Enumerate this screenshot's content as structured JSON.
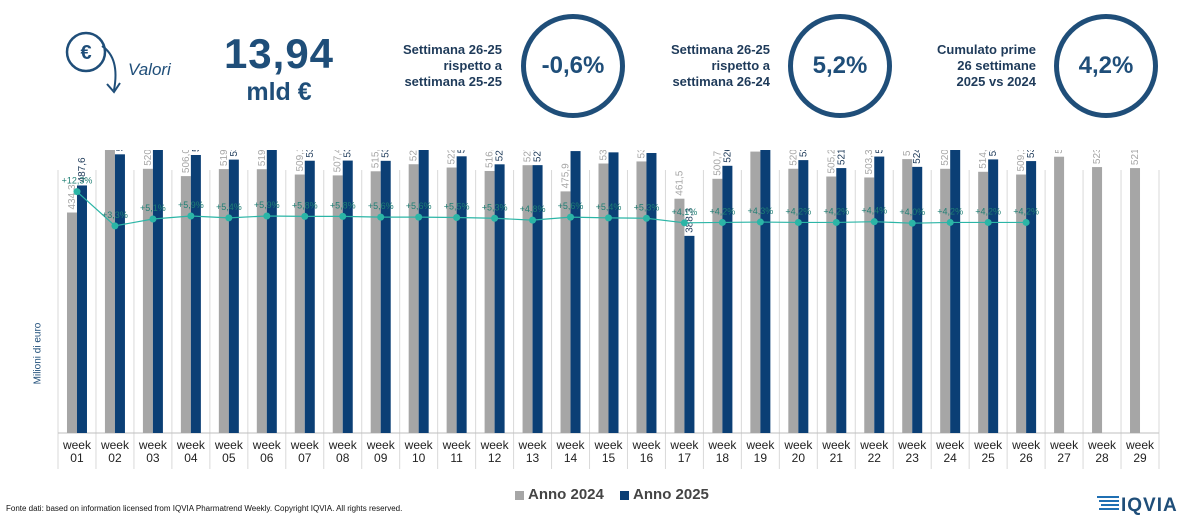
{
  "header": {
    "valori_label": "Valori",
    "kpi_value": "13,94",
    "kpi_unit": "mld €",
    "kpi1": {
      "line1": "Settimana 26-25",
      "line2": "rispetto a",
      "line3": "settimana 25-25",
      "value": "-0,6%"
    },
    "kpi2": {
      "line1": "Settimana 26-25",
      "line2": "rispetto a",
      "line3": "settimana 26-24",
      "value": "5,2%"
    },
    "kpi3": {
      "line1": "Cumulato prime",
      "line2": "26 settimane",
      "line3": "2025 vs 2024",
      "value": "4,2%"
    }
  },
  "source": "Fonte dati: based on information licensed from IQVIA Pharmatrend Weekly. Copyright IQVIA. All rights reserved.",
  "logo_text": "IQVIA",
  "chart_data": {
    "type": "bar",
    "ylabel": "Milioni di euro",
    "categories": [
      "week\n01",
      "week\n02",
      "week\n03",
      "week\n04",
      "week\n05",
      "week\n06",
      "week\n07",
      "week\n08",
      "week\n09",
      "week\n10",
      "week\n11",
      "week\n12",
      "week\n13",
      "week\n14",
      "week\n15",
      "week\n16",
      "week\n17",
      "week\n18",
      "week\n19",
      "week\n20",
      "week\n21",
      "week\n22",
      "week\n23",
      "week\n24",
      "week\n25",
      "week\n26",
      "week\n27",
      "week\n28",
      "week\n29"
    ],
    "series": [
      {
        "name": "Anno 2024",
        "color": "#a6a6a6",
        "values": [
          434.3,
          568.8,
          520.4,
          506.0,
          519.8,
          519.6,
          509.1,
          507.4,
          515.5,
          529.4,
          522.9,
          516.1,
          527.5,
          475.9,
          530.8,
          534.9,
          461.5,
          500.7,
          554.3,
          520.5,
          505.2,
          503.3,
          539.5,
          520.4,
          514.5,
          509.1,
          544.2,
          523.8,
          521.8
        ],
        "labels": [
          "434,3",
          "568,8",
          "520,4",
          "506,0",
          "519,8",
          "519,6",
          "509,1",
          "507,4",
          "515,5",
          "529,4",
          "522,9",
          "516,1",
          "527,5",
          "475,9",
          "530,8",
          "534,9",
          "461,5",
          "500,7",
          "554,3",
          "520,5",
          "505,2",
          "503,3",
          "539,5",
          "520,4",
          "514,5",
          "509,1",
          "544,2",
          "523,8",
          "521,8"
        ]
      },
      {
        "name": "Anno 2025",
        "color": "#0b3f75",
        "values": [
          487.6,
          548.9,
          564.4,
          547.6,
          538.5,
          562.1,
          536.3,
          536.6,
          536.1,
          560.3,
          545.0,
          529.2,
          527.6,
          555.3,
          552.8,
          551.5,
          388.3,
          526.3,
          587.5,
          537.5,
          521.8,
          544.5,
          524.2,
          558.0,
          538.9,
          535.6,
          null,
          null,
          null
        ],
        "labels": [
          "487,6",
          "548,9",
          "564,4",
          "547,6",
          "538,5",
          "562,1",
          "536,3",
          "536,6",
          "536,1",
          "560,3",
          "545,0",
          "529,2",
          "527,6",
          "555,3",
          "552,8",
          "551,5",
          "388,3",
          "526,3",
          "587,5",
          "537,5",
          "521,8",
          "544,5",
          "524,2",
          "558,0",
          "538,9",
          "535,6",
          null,
          null,
          null
        ]
      }
    ],
    "cumulative_growth": {
      "name": "",
      "color": "#2bb5a6",
      "values": [
        12.3,
        3.3,
        5.1,
        5.9,
        5.4,
        5.9,
        5.8,
        5.8,
        5.6,
        5.6,
        5.5,
        5.3,
        4.8,
        5.6,
        5.4,
        5.3,
        4.1,
        4.2,
        4.3,
        4.2,
        4.2,
        4.4,
        4.0,
        4.2,
        4.2,
        4.2
      ],
      "labels": [
        "+12,3%",
        "+3,3%",
        "+5,1%",
        "+5,9%",
        "+5,4%",
        "+5,9%",
        "+5,8%",
        "+5,8%",
        "+5,6%",
        "+5,6%",
        "+5,5%",
        "+5,3%",
        "+4,8%",
        "+5,6%",
        "+5,4%",
        "+5,3%",
        "+4,1%",
        "+4,2%",
        "+4,3%",
        "+4,2%",
        "+4,2%",
        "+4,4%",
        "+4,0%",
        "+4,2%",
        "+4,2%",
        "+4,2%"
      ]
    },
    "ylim": [
      0,
      650
    ],
    "grid": false,
    "legend_position": "bottom"
  }
}
